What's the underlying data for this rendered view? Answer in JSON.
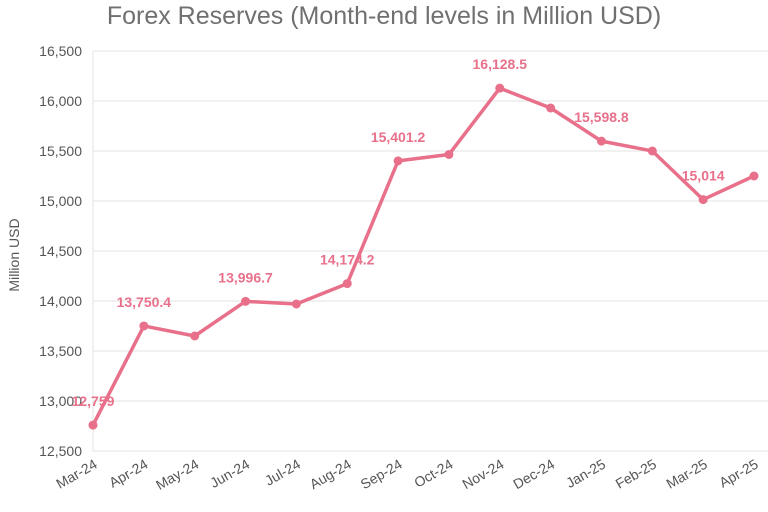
{
  "chart_data": {
    "type": "line",
    "title": "Forex Reserves (Month-end levels in Million USD)",
    "xlabel": "",
    "ylabel": "Million USD",
    "categories": [
      "Mar-24",
      "Apr-24",
      "May-24",
      "Jun-24",
      "Jul-24",
      "Aug-24",
      "Sep-24",
      "Oct-24",
      "Nov-24",
      "Dec-24",
      "Jan-25",
      "Feb-25",
      "Mar-25",
      "Apr-25"
    ],
    "series": [
      {
        "values": [
          12759,
          13750.4,
          13650,
          13996.7,
          13970,
          14174.2,
          15401.2,
          15465,
          16128.5,
          15930,
          15598.8,
          15500,
          15014,
          15250
        ]
      }
    ],
    "data_labels": [
      {
        "index": 0,
        "text": "12,759"
      },
      {
        "index": 1,
        "text": "13,750.4"
      },
      {
        "index": 3,
        "text": "13,996.7"
      },
      {
        "index": 5,
        "text": "14,174.2"
      },
      {
        "index": 6,
        "text": "15,401.2"
      },
      {
        "index": 8,
        "text": "16,128.5"
      },
      {
        "index": 10,
        "text": "15,598.8"
      },
      {
        "index": 12,
        "text": "15,014"
      }
    ],
    "ylim": [
      12500,
      16500
    ],
    "yticks": [
      12500,
      13000,
      13500,
      14000,
      14500,
      15000,
      15500,
      16000,
      16500
    ],
    "ytick_labels": [
      "12,500",
      "13,000",
      "13,500",
      "14,000",
      "14,500",
      "15,000",
      "15,500",
      "16,000",
      "16,500"
    ],
    "grid": true,
    "legend": "none",
    "colors": {
      "line": "#e8708a",
      "grid": "#e3e3e3",
      "axis_text": "#555555",
      "title": "#707070"
    }
  }
}
